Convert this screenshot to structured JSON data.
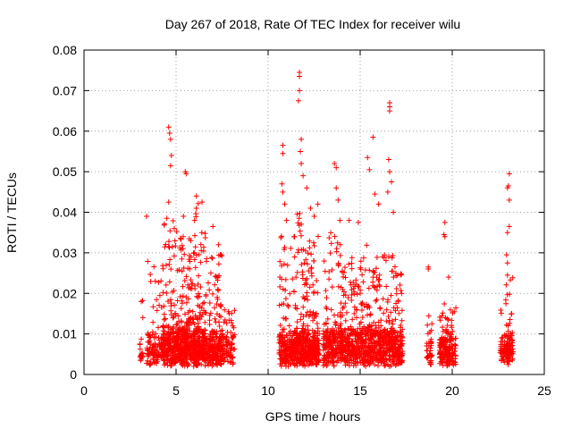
{
  "chart_data": {
    "type": "scatter",
    "title": "Day 267 of 2018, Rate Of TEC Index for receiver wilu",
    "xlabel": "GPS time / hours",
    "ylabel": "ROTI / TECUs",
    "xlim": [
      0,
      25
    ],
    "ylim": [
      0,
      0.08
    ],
    "x_ticks": [
      "0",
      "5",
      "10",
      "15",
      "20",
      "25"
    ],
    "y_ticks": [
      "0",
      "0.01",
      "0.02",
      "0.03",
      "0.04",
      "0.05",
      "0.06",
      "0.07",
      "0.08"
    ],
    "grid": true,
    "legend": "none",
    "marker": "plus",
    "color": "#ff0000",
    "clusters": [
      {
        "x_range": [
          3.0,
          3.2
        ],
        "y_base": 0.009,
        "y_max": 0.019,
        "density": 20
      },
      {
        "x_range": [
          3.4,
          4.3
        ],
        "y_base": 0.009,
        "y_max": 0.028,
        "density": 120
      },
      {
        "x_range": [
          4.3,
          5.2
        ],
        "y_base": 0.01,
        "y_max": 0.04,
        "density": 260
      },
      {
        "x_range": [
          5.2,
          6.0
        ],
        "y_base": 0.01,
        "y_max": 0.035,
        "density": 260
      },
      {
        "x_range": [
          6.0,
          6.6
        ],
        "y_base": 0.01,
        "y_max": 0.043,
        "density": 220
      },
      {
        "x_range": [
          6.6,
          7.6
        ],
        "y_base": 0.009,
        "y_max": 0.03,
        "density": 230
      },
      {
        "x_range": [
          7.6,
          8.2
        ],
        "y_base": 0.008,
        "y_max": 0.016,
        "density": 70
      },
      {
        "x_range": [
          10.6,
          11.5
        ],
        "y_base": 0.009,
        "y_max": 0.035,
        "density": 210
      },
      {
        "x_range": [
          11.5,
          12.2
        ],
        "y_base": 0.01,
        "y_max": 0.04,
        "density": 230
      },
      {
        "x_range": [
          12.2,
          12.8
        ],
        "y_base": 0.009,
        "y_max": 0.035,
        "density": 170
      },
      {
        "x_range": [
          13.0,
          14.0
        ],
        "y_base": 0.01,
        "y_max": 0.035,
        "density": 230
      },
      {
        "x_range": [
          14.0,
          15.0
        ],
        "y_base": 0.01,
        "y_max": 0.03,
        "density": 230
      },
      {
        "x_range": [
          15.0,
          16.0
        ],
        "y_base": 0.01,
        "y_max": 0.032,
        "density": 230
      },
      {
        "x_range": [
          16.0,
          16.9
        ],
        "y_base": 0.01,
        "y_max": 0.03,
        "density": 230
      },
      {
        "x_range": [
          16.9,
          17.3
        ],
        "y_base": 0.009,
        "y_max": 0.025,
        "density": 110
      },
      {
        "x_range": [
          18.6,
          18.9
        ],
        "y_base": 0.007,
        "y_max": 0.016,
        "density": 40
      },
      {
        "x_range": [
          19.3,
          20.2
        ],
        "y_base": 0.008,
        "y_max": 0.018,
        "density": 190
      },
      {
        "x_range": [
          22.6,
          22.9
        ],
        "y_base": 0.008,
        "y_max": 0.016,
        "density": 40
      },
      {
        "x_range": [
          22.9,
          23.3
        ],
        "y_base": 0.009,
        "y_max": 0.024,
        "density": 90
      }
    ],
    "peaks": [
      {
        "x": 3.4,
        "y": 0.039
      },
      {
        "x": 4.6,
        "y": 0.061
      },
      {
        "x": 4.65,
        "y": 0.0595
      },
      {
        "x": 4.7,
        "y": 0.058
      },
      {
        "x": 4.7,
        "y": 0.0515
      },
      {
        "x": 4.75,
        "y": 0.054
      },
      {
        "x": 4.6,
        "y": 0.0425
      },
      {
        "x": 4.5,
        "y": 0.0385
      },
      {
        "x": 4.9,
        "y": 0.036
      },
      {
        "x": 4.8,
        "y": 0.0315
      },
      {
        "x": 5.5,
        "y": 0.05
      },
      {
        "x": 5.55,
        "y": 0.0495
      },
      {
        "x": 5.4,
        "y": 0.039
      },
      {
        "x": 5.8,
        "y": 0.033
      },
      {
        "x": 6.1,
        "y": 0.044
      },
      {
        "x": 6.1,
        "y": 0.041
      },
      {
        "x": 6.0,
        "y": 0.038
      },
      {
        "x": 6.4,
        "y": 0.035
      },
      {
        "x": 7.0,
        "y": 0.0365
      },
      {
        "x": 7.3,
        "y": 0.032
      },
      {
        "x": 10.8,
        "y": 0.0565
      },
      {
        "x": 10.8,
        "y": 0.0545
      },
      {
        "x": 10.75,
        "y": 0.047
      },
      {
        "x": 10.8,
        "y": 0.045
      },
      {
        "x": 10.9,
        "y": 0.042
      },
      {
        "x": 11.0,
        "y": 0.038
      },
      {
        "x": 11.7,
        "y": 0.0745
      },
      {
        "x": 11.7,
        "y": 0.0735
      },
      {
        "x": 11.7,
        "y": 0.07
      },
      {
        "x": 11.65,
        "y": 0.0675
      },
      {
        "x": 11.8,
        "y": 0.058
      },
      {
        "x": 11.75,
        "y": 0.055
      },
      {
        "x": 11.8,
        "y": 0.052
      },
      {
        "x": 11.9,
        "y": 0.049
      },
      {
        "x": 12.1,
        "y": 0.046
      },
      {
        "x": 12.3,
        "y": 0.041
      },
      {
        "x": 12.5,
        "y": 0.039
      },
      {
        "x": 12.7,
        "y": 0.042
      },
      {
        "x": 13.6,
        "y": 0.052
      },
      {
        "x": 13.7,
        "y": 0.051
      },
      {
        "x": 13.7,
        "y": 0.046
      },
      {
        "x": 13.8,
        "y": 0.043
      },
      {
        "x": 13.9,
        "y": 0.038
      },
      {
        "x": 14.4,
        "y": 0.038
      },
      {
        "x": 14.9,
        "y": 0.0375
      },
      {
        "x": 15.4,
        "y": 0.0535
      },
      {
        "x": 15.5,
        "y": 0.0505
      },
      {
        "x": 15.7,
        "y": 0.0585
      },
      {
        "x": 15.8,
        "y": 0.0445
      },
      {
        "x": 16.0,
        "y": 0.042
      },
      {
        "x": 16.6,
        "y": 0.067
      },
      {
        "x": 16.6,
        "y": 0.066
      },
      {
        "x": 16.6,
        "y": 0.065
      },
      {
        "x": 16.55,
        "y": 0.053
      },
      {
        "x": 16.6,
        "y": 0.05
      },
      {
        "x": 16.7,
        "y": 0.0475
      },
      {
        "x": 16.5,
        "y": 0.045
      },
      {
        "x": 16.8,
        "y": 0.04
      },
      {
        "x": 18.7,
        "y": 0.0265
      },
      {
        "x": 18.7,
        "y": 0.026
      },
      {
        "x": 19.6,
        "y": 0.0375
      },
      {
        "x": 19.55,
        "y": 0.0345
      },
      {
        "x": 19.6,
        "y": 0.034
      },
      {
        "x": 19.8,
        "y": 0.024
      },
      {
        "x": 23.1,
        "y": 0.0495
      },
      {
        "x": 23.05,
        "y": 0.0465
      },
      {
        "x": 23.0,
        "y": 0.046
      },
      {
        "x": 23.1,
        "y": 0.043
      },
      {
        "x": 23.1,
        "y": 0.0365
      },
      {
        "x": 23.0,
        "y": 0.035
      },
      {
        "x": 22.95,
        "y": 0.0295
      },
      {
        "x": 23.0,
        "y": 0.0275
      },
      {
        "x": 23.0,
        "y": 0.0245
      }
    ]
  }
}
